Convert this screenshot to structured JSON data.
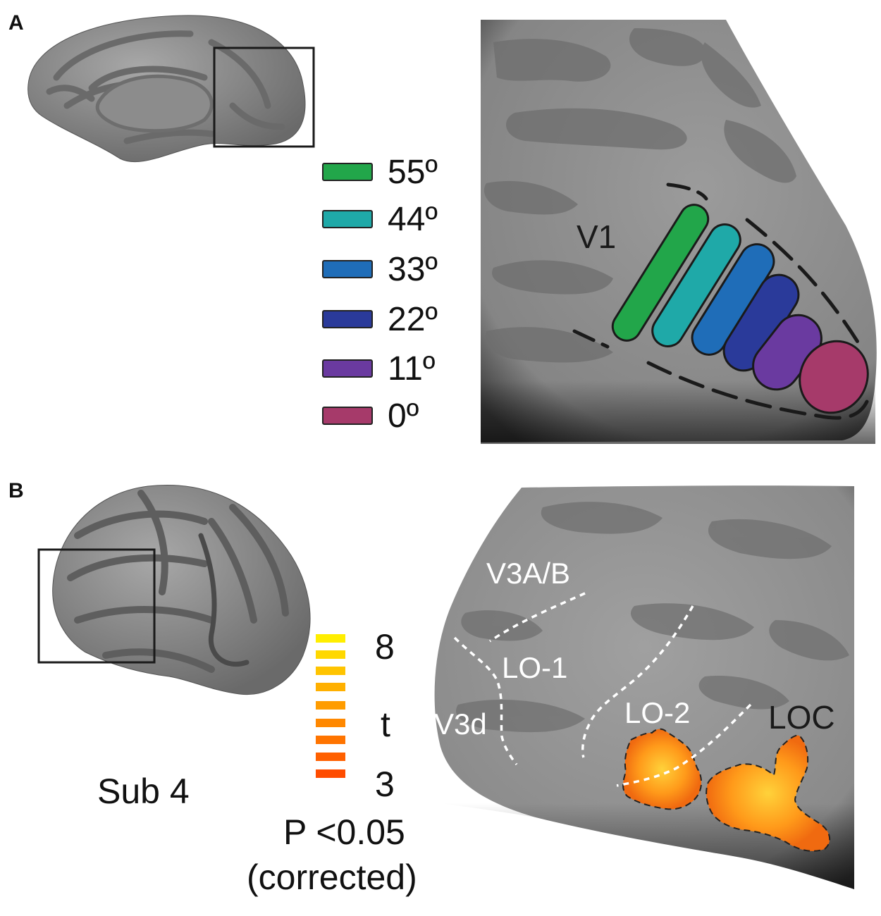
{
  "panels": [
    {
      "letter": "A"
    },
    {
      "letter": "B"
    }
  ],
  "panel_a": {
    "region_label": "V1",
    "eccentricity_legend": [
      {
        "label": "55º",
        "color": "#22a64a"
      },
      {
        "label": "44º",
        "color": "#1fa9a8"
      },
      {
        "label": "33º",
        "color": "#1f6db8"
      },
      {
        "label": "22º",
        "color": "#2a3a9a"
      },
      {
        "label": "11º",
        "color": "#6a3aa0"
      },
      {
        "label": "0º",
        "color": "#a63a6a"
      }
    ]
  },
  "panel_b": {
    "subject_label": "Sub 4",
    "colorbar": {
      "max_label": "8",
      "mid_label": "t",
      "min_label": "3",
      "threshold_line1": "P <0.05",
      "threshold_line2": "(corrected)",
      "colors": [
        "#ffee00",
        "#ffd800",
        "#ffc400",
        "#ffb000",
        "#ff9c00",
        "#ff8800",
        "#ff7400",
        "#ff6000",
        "#ff4c00"
      ]
    },
    "region_labels": {
      "v3ab": "V3A/B",
      "lo1": "LO-1",
      "v3d": "V3d",
      "lo2": "LO-2",
      "loc": "LOC"
    }
  }
}
